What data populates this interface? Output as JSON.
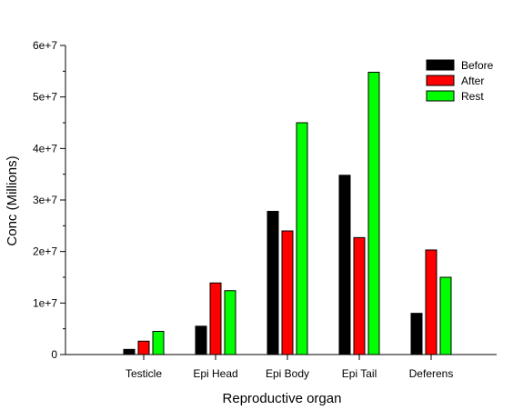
{
  "chart_data": {
    "type": "bar",
    "title": "",
    "xlabel": "Reproductive organ",
    "ylabel": "Conc (Millions)",
    "categories": [
      "Testicle",
      "Epi Head",
      "Epi Body",
      "Epi Tail",
      "Deferens"
    ],
    "ylim": [
      0,
      60000000
    ],
    "yticks": [
      0,
      10000000,
      20000000,
      30000000,
      40000000,
      50000000,
      60000000
    ],
    "ytick_labels": [
      "0",
      "1e+7",
      "2e+7",
      "3e+7",
      "4e+7",
      "5e+7",
      "6e+7"
    ],
    "grid": false,
    "legend_position": "top-right",
    "series": [
      {
        "name": "Before",
        "color": "#000000",
        "values": [
          1000000,
          5500000,
          27800000,
          34800000,
          8000000
        ]
      },
      {
        "name": "After",
        "color": "#ff0000",
        "values": [
          2600000,
          13900000,
          24000000,
          22700000,
          20300000
        ]
      },
      {
        "name": "Rest",
        "color": "#00ff00",
        "values": [
          4500000,
          12400000,
          45000000,
          54800000,
          15000000
        ]
      }
    ]
  }
}
